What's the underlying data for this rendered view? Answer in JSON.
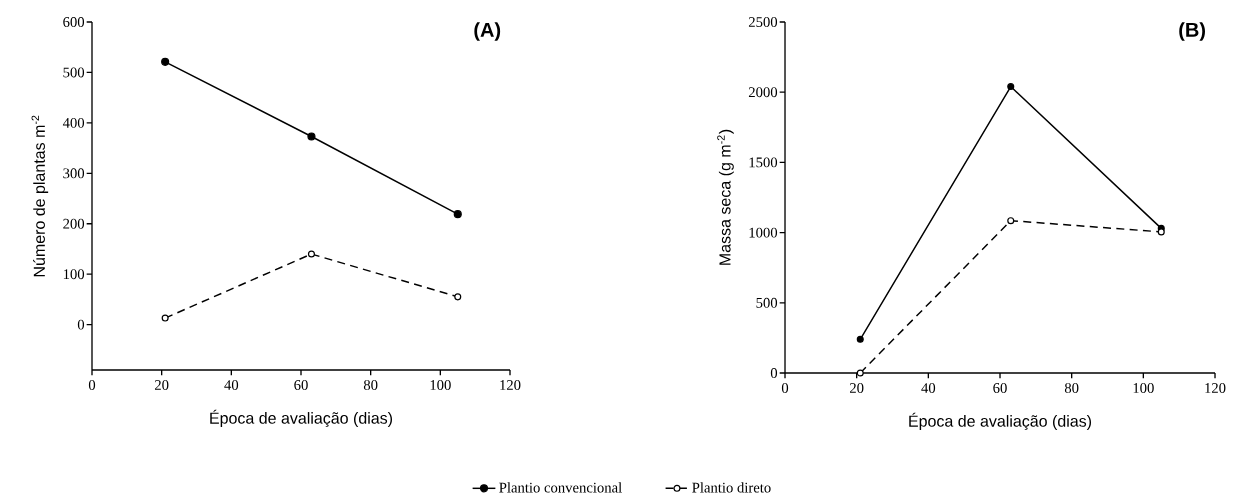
{
  "chart_data": [
    {
      "type": "line",
      "title": "(A)",
      "xlabel": "Época de avaliação (dias)",
      "ylabel": "Número de plantas m$^{-2}$",
      "x": [
        21,
        63,
        105
      ],
      "xlim": [
        0,
        120
      ],
      "xticks": [
        0,
        20,
        40,
        60,
        80,
        100,
        120
      ],
      "ylim": [
        -90,
        600
      ],
      "yticks": [
        0,
        100,
        200,
        300,
        400,
        500,
        600
      ],
      "marker": "circle",
      "legend": "bottom",
      "grid": false,
      "series": [
        {
          "name": "Plantio convencional",
          "color": "#000000",
          "line_style": "solid",
          "values": [
            521,
            373,
            219
          ]
        },
        {
          "name": "Plantio direto",
          "color": "#000000",
          "line_style": "dashed",
          "values": [
            13,
            140,
            55
          ]
        }
      ]
    },
    {
      "type": "line",
      "title": "(B)",
      "xlabel": "Época de avaliação (dias)",
      "ylabel": "Massa seca (g m$^{-2}$)",
      "x": [
        21,
        63,
        105
      ],
      "xlim": [
        0,
        120
      ],
      "xticks": [
        0,
        20,
        40,
        60,
        80,
        100,
        120
      ],
      "ylim": [
        0,
        2500
      ],
      "yticks": [
        0,
        500,
        1000,
        1500,
        2000,
        2500
      ],
      "marker": "circle",
      "grid": false,
      "series": [
        {
          "color": "#000000",
          "line_style": "solid",
          "values": [
            240,
            2040,
            1030
          ]
        },
        {
          "color": "#000000",
          "line_style": "dashed",
          "values": [
            0,
            1085,
            1005
          ]
        }
      ]
    }
  ]
}
